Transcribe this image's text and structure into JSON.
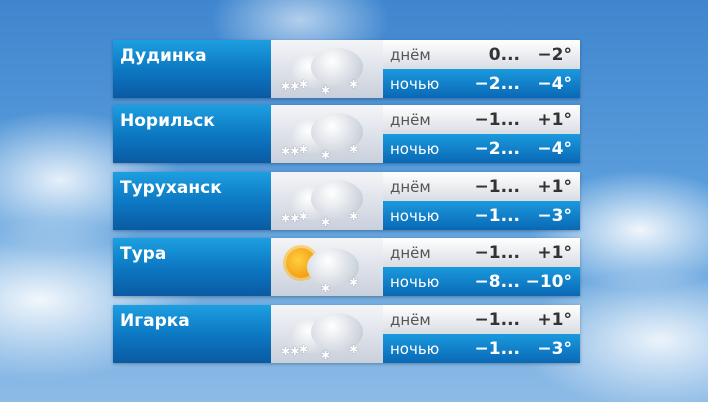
{
  "labels": {
    "day": "днём",
    "night": "ночью"
  },
  "cities": [
    {
      "name": "Дудинка",
      "icon": "cloud-snow-icon",
      "day_min": "0...",
      "day_max": "−2°",
      "night_min": "−2...",
      "night_max": "−4°"
    },
    {
      "name": "Норильск",
      "icon": "cloud-snow-icon",
      "day_min": "−1...",
      "day_max": "+1°",
      "night_min": "−2...",
      "night_max": "−4°"
    },
    {
      "name": "Туруханск",
      "icon": "cloud-snow-icon",
      "day_min": "−1...",
      "day_max": "+1°",
      "night_min": "−1...",
      "night_max": "−3°"
    },
    {
      "name": "Тура",
      "icon": "sun-cloud-snow-icon",
      "day_min": "−1...",
      "day_max": "+1°",
      "night_min": "−8...",
      "night_max": "−10°"
    },
    {
      "name": "Игарка",
      "icon": "cloud-snow-icon",
      "day_min": "−1...",
      "day_max": "+1°",
      "night_min": "−1...",
      "night_max": "−3°"
    }
  ]
}
